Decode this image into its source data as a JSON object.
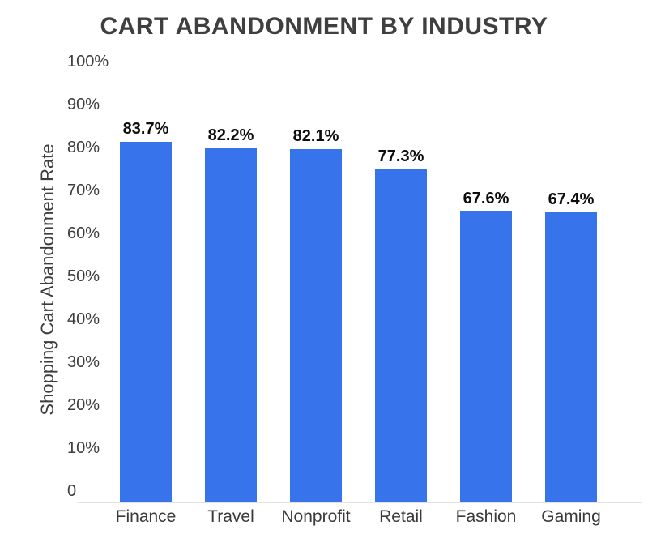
{
  "title": "CART ABANDONMENT BY INDUSTRY",
  "chart_data": {
    "type": "bar",
    "title": "CART ABANDONMENT BY INDUSTRY",
    "categories": [
      "Finance",
      "Travel",
      "Nonprofit",
      "Retail",
      "Fashion",
      "Gaming"
    ],
    "values": [
      83.7,
      82.2,
      82.1,
      77.3,
      67.6,
      67.4
    ],
    "value_labels": [
      "83.7%",
      "82.2%",
      "82.1%",
      "77.3%",
      "67.6%",
      "67.4%"
    ],
    "xlabel": "",
    "ylabel": "Shopping Cart Abandonment Rate",
    "ylim": [
      0,
      100
    ],
    "yticks": [
      0,
      10,
      20,
      30,
      40,
      50,
      60,
      70,
      80,
      90,
      100
    ],
    "ytick_labels": [
      "0",
      "10%",
      "20%",
      "30%",
      "40%",
      "50%",
      "60%",
      "70%",
      "80%",
      "90%",
      "100%"
    ],
    "grid": false,
    "legend": false
  },
  "colors": {
    "bar": "#3773EB",
    "title_text": "#3F3F3F",
    "axis_text": "#3C3C3C",
    "value_text": "#0D0D0D",
    "baseline": "#E3E3E3",
    "background": "#FFFFFF"
  }
}
